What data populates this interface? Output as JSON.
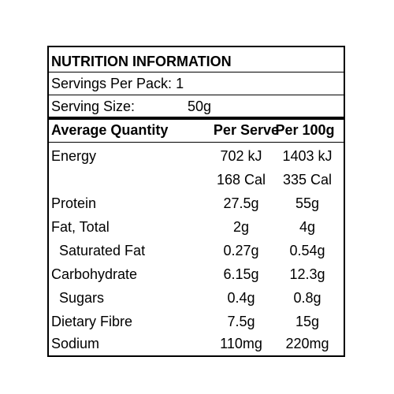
{
  "label": {
    "title": "NUTRITION INFORMATION",
    "servings_per_pack": "Servings Per Pack: 1",
    "serving_size_label": "Serving Size:",
    "serving_size_value": "50g",
    "column_headers": {
      "name": "Average Quantity",
      "per_serve": "Per Serve",
      "per_100g": "Per 100g"
    },
    "nutrients": [
      {
        "name": "Energy",
        "per_serve": "702 kJ",
        "per_100g": "1403 kJ"
      },
      {
        "name": "",
        "per_serve": "168 Cal",
        "per_100g": "335 Cal"
      },
      {
        "name": "Protein",
        "per_serve": "27.5g",
        "per_100g": "55g"
      },
      {
        "name": "Fat, Total",
        "per_serve": "2g",
        "per_100g": "4g"
      },
      {
        "name": "Saturated Fat",
        "per_serve": "0.27g",
        "per_100g": "0.54g"
      },
      {
        "name": "Carbohydrate",
        "per_serve": "6.15g",
        "per_100g": "12.3g"
      },
      {
        "name": "Sugars",
        "per_serve": "0.4g",
        "per_100g": "0.8g"
      },
      {
        "name": "Dietary Fibre",
        "per_serve": "7.5g",
        "per_100g": "15g"
      },
      {
        "name": "Sodium",
        "per_serve": "110mg",
        "per_100g": "220mg"
      }
    ]
  }
}
